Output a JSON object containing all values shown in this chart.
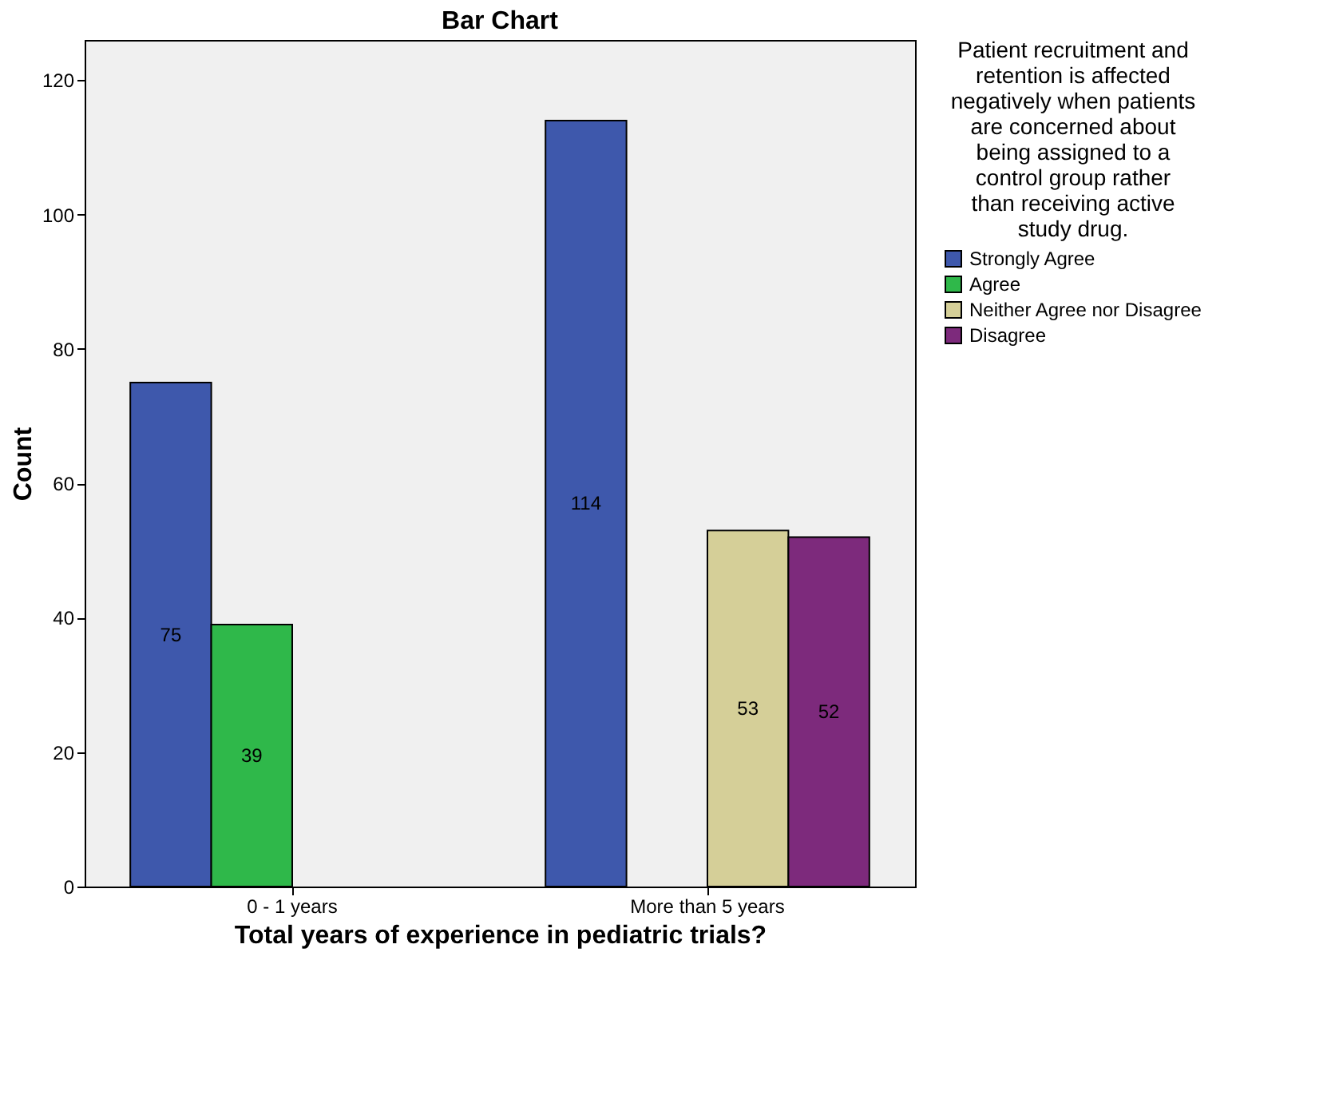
{
  "chart_data": {
    "type": "bar",
    "title": "Bar Chart",
    "xlabel": "Total years of experience in pediatric trials?",
    "ylabel": "Count",
    "legend_title": "Patient recruitment and retention is affected negatively when patients are concerned about being assigned to a control group rather than receiving active study drug.",
    "categories": [
      "0 - 1 years",
      "More than 5 years"
    ],
    "series": [
      {
        "name": "Strongly Agree",
        "color": "#3e58ac",
        "values": [
          75,
          114
        ]
      },
      {
        "name": "Agree",
        "color": "#2fb84a",
        "values": [
          39,
          null
        ]
      },
      {
        "name": "Neither Agree nor Disagree",
        "color": "#d5cf98",
        "values": [
          null,
          53
        ]
      },
      {
        "name": "Disagree",
        "color": "#7d2a7c",
        "values": [
          null,
          52
        ]
      }
    ],
    "ylim": [
      0,
      126
    ],
    "yticks": [
      0,
      20,
      40,
      60,
      80,
      100,
      120
    ],
    "grid": false,
    "legend": "top right",
    "data_labels": true
  }
}
